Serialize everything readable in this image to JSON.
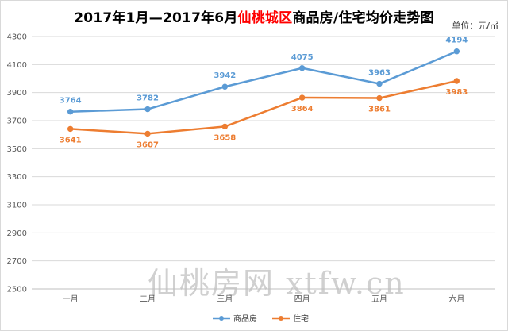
{
  "title": {
    "prefix": "2017年1月—2017年6月",
    "highlight": "仙桃城区",
    "suffix": "商品房/住宅均价走势图"
  },
  "unit_label": "单位：元/㎡",
  "watermark": "仙桃房网 xtfw.cn",
  "colors": {
    "series_1": "#5b9bd5",
    "series_2": "#ed7d31",
    "grid": "#d9d9d9",
    "axis_text": "#595959"
  },
  "chart_data": {
    "type": "line",
    "categories": [
      "一月",
      "二月",
      "三月",
      "四月",
      "五月",
      "六月"
    ],
    "series": [
      {
        "name": "商品房",
        "values": [
          3764,
          3782,
          3942,
          4075,
          3963,
          4194
        ]
      },
      {
        "name": "住宅",
        "values": [
          3641,
          3607,
          3658,
          3864,
          3861,
          3983
        ]
      }
    ],
    "ylim": [
      2500,
      4300
    ],
    "yticks": [
      2500,
      2700,
      2900,
      3100,
      3300,
      3500,
      3700,
      3900,
      4100,
      4300
    ],
    "grid": true,
    "legend": "bottom-center",
    "xlabel": "",
    "ylabel": ""
  }
}
